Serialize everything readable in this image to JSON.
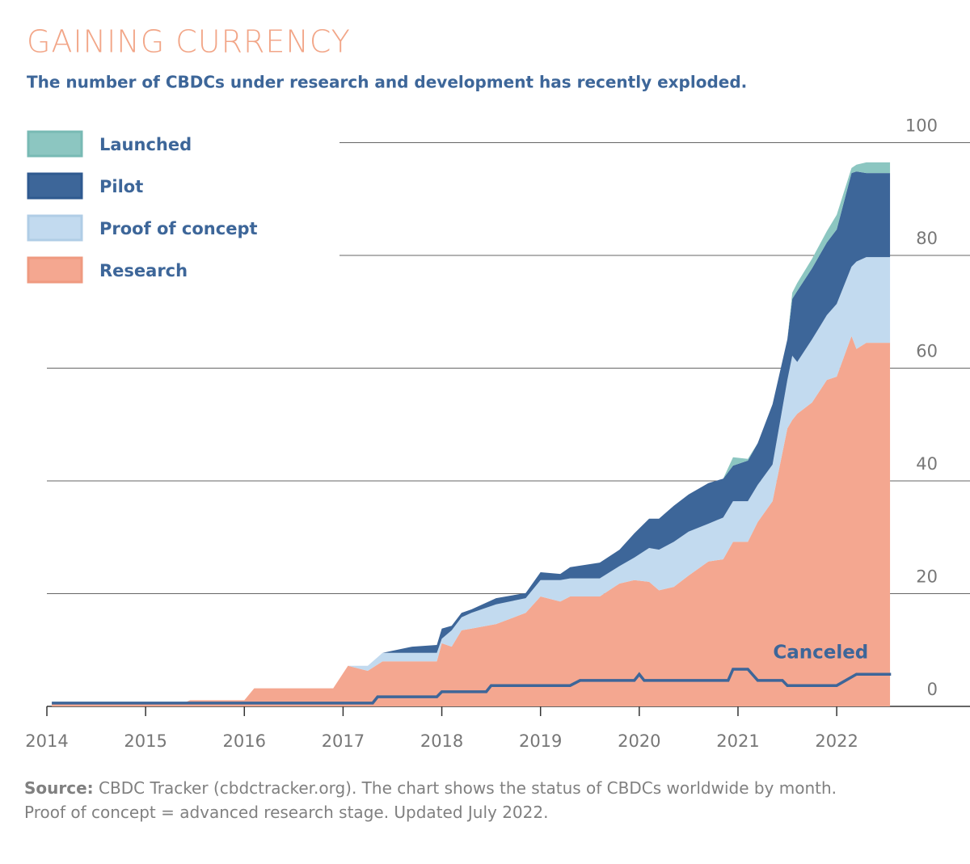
{
  "chart_data": {
    "type": "area",
    "title": "GAINING CURRENCY",
    "subtitle": "The number of CBDCs under research and development has recently exploded.",
    "source_label": "Source:",
    "source": "CBDC Tracker (cbdctracker.org). The chart shows the status of CBDCs worldwide by month. Proof of concept = advanced research stage. Updated July 2022.",
    "stacked": true,
    "x": [
      2014.05,
      2015.4,
      2015.45,
      2016.0,
      2016.1,
      2016.9,
      2017.05,
      2017.25,
      2017.4,
      2017.7,
      2017.95,
      2018.0,
      2018.1,
      2018.2,
      2018.3,
      2018.55,
      2018.85,
      2019.0,
      2019.2,
      2019.3,
      2019.6,
      2019.8,
      2019.95,
      2020.1,
      2020.2,
      2020.35,
      2020.5,
      2020.7,
      2020.85,
      2020.95,
      2021.1,
      2021.2,
      2021.35,
      2021.5,
      2021.55,
      2021.6,
      2021.75,
      2021.9,
      2022.0,
      2022.15,
      2022.2,
      2022.3,
      2022.54
    ],
    "series": [
      {
        "name": "Research",
        "color": "#f4a790",
        "legend_border": "#ef9a80",
        "mark": "area",
        "values": [
          0.7,
          0.7,
          1.1,
          1.1,
          3.2,
          3.2,
          7.2,
          6.3,
          8.0,
          8.0,
          8.0,
          11.2,
          10.6,
          13.5,
          13.8,
          14.6,
          16.6,
          19.5,
          18.6,
          19.5,
          19.5,
          21.8,
          22.4,
          22.1,
          20.6,
          21.2,
          23.2,
          25.7,
          26.1,
          29.2,
          29.2,
          32.7,
          36.4,
          49.3,
          50.8,
          51.9,
          53.9,
          57.9,
          58.5,
          65.7,
          63.4,
          64.5,
          64.5
        ]
      },
      {
        "name": "Proof of concept",
        "color": "#c2daef",
        "legend_border": "#b0cde6",
        "mark": "area",
        "values": [
          0,
          0,
          0,
          0,
          0,
          0,
          0,
          0.9,
          1.5,
          1.5,
          1.5,
          0.8,
          2.9,
          2.3,
          2.8,
          3.5,
          2.6,
          2.9,
          3.8,
          3.2,
          3.2,
          3.1,
          4.0,
          6.0,
          7.2,
          8.0,
          7.8,
          6.7,
          7.4,
          7.2,
          7.2,
          6.6,
          6.5,
          8.6,
          11.4,
          9.2,
          11.2,
          11.5,
          12.9,
          12.3,
          15.5,
          15.2,
          15.2
        ]
      },
      {
        "name": "Pilot",
        "color": "#3d6699",
        "legend_border": "#2f5a90",
        "mark": "area",
        "values": [
          0,
          0,
          0,
          0,
          0,
          0,
          0,
          0,
          0,
          1.1,
          1.4,
          1.8,
          0.8,
          0.8,
          0.6,
          1.1,
          0.9,
          1.4,
          1.1,
          2.0,
          2.8,
          2.9,
          4.3,
          5.2,
          5.5,
          6.4,
          6.6,
          7.2,
          6.9,
          6.3,
          7.2,
          7.4,
          10.7,
          7.2,
          10.1,
          12.6,
          12.6,
          12.9,
          13.2,
          16.6,
          16.0,
          14.9,
          14.9
        ]
      },
      {
        "name": "Launched",
        "color": "#8cc6c1",
        "legend_border": "#78bab4",
        "mark": "area",
        "values": [
          0,
          0,
          0,
          0,
          0,
          0,
          0,
          0,
          0,
          0,
          0,
          0,
          0,
          0,
          0,
          0,
          0,
          0,
          0,
          0,
          0,
          0,
          0,
          0,
          0,
          0,
          0,
          0,
          0,
          1.5,
          0.3,
          0,
          0,
          0,
          1.1,
          1.4,
          1.7,
          2.0,
          2.6,
          0.9,
          1.2,
          1.9,
          1.9
        ]
      },
      {
        "name": "Canceled",
        "color": "#3d6699",
        "mark": "line",
        "x": [
          2014.05,
          2017.3,
          2017.35,
          2017.95,
          2018.0,
          2018.45,
          2018.5,
          2019.3,
          2019.4,
          2019.95,
          2020.0,
          2020.05,
          2020.9,
          2020.95,
          2021.1,
          2021.2,
          2021.45,
          2021.5,
          2022.0,
          2022.2,
          2022.55
        ],
        "values": [
          0.6,
          0.6,
          1.7,
          1.7,
          2.6,
          2.6,
          3.7,
          3.7,
          4.6,
          4.6,
          5.7,
          4.6,
          4.6,
          6.6,
          6.6,
          4.6,
          4.6,
          3.7,
          3.7,
          5.7,
          5.7
        ]
      }
    ],
    "xlim": [
      2014,
      2023.35
    ],
    "xticks": [
      2014,
      2015,
      2016,
      2017,
      2018,
      2019,
      2020,
      2021,
      2022
    ],
    "ylim": [
      0,
      100
    ],
    "yticks": [
      0,
      20,
      40,
      60,
      80,
      100
    ],
    "grid": true,
    "legend": "top-left"
  }
}
